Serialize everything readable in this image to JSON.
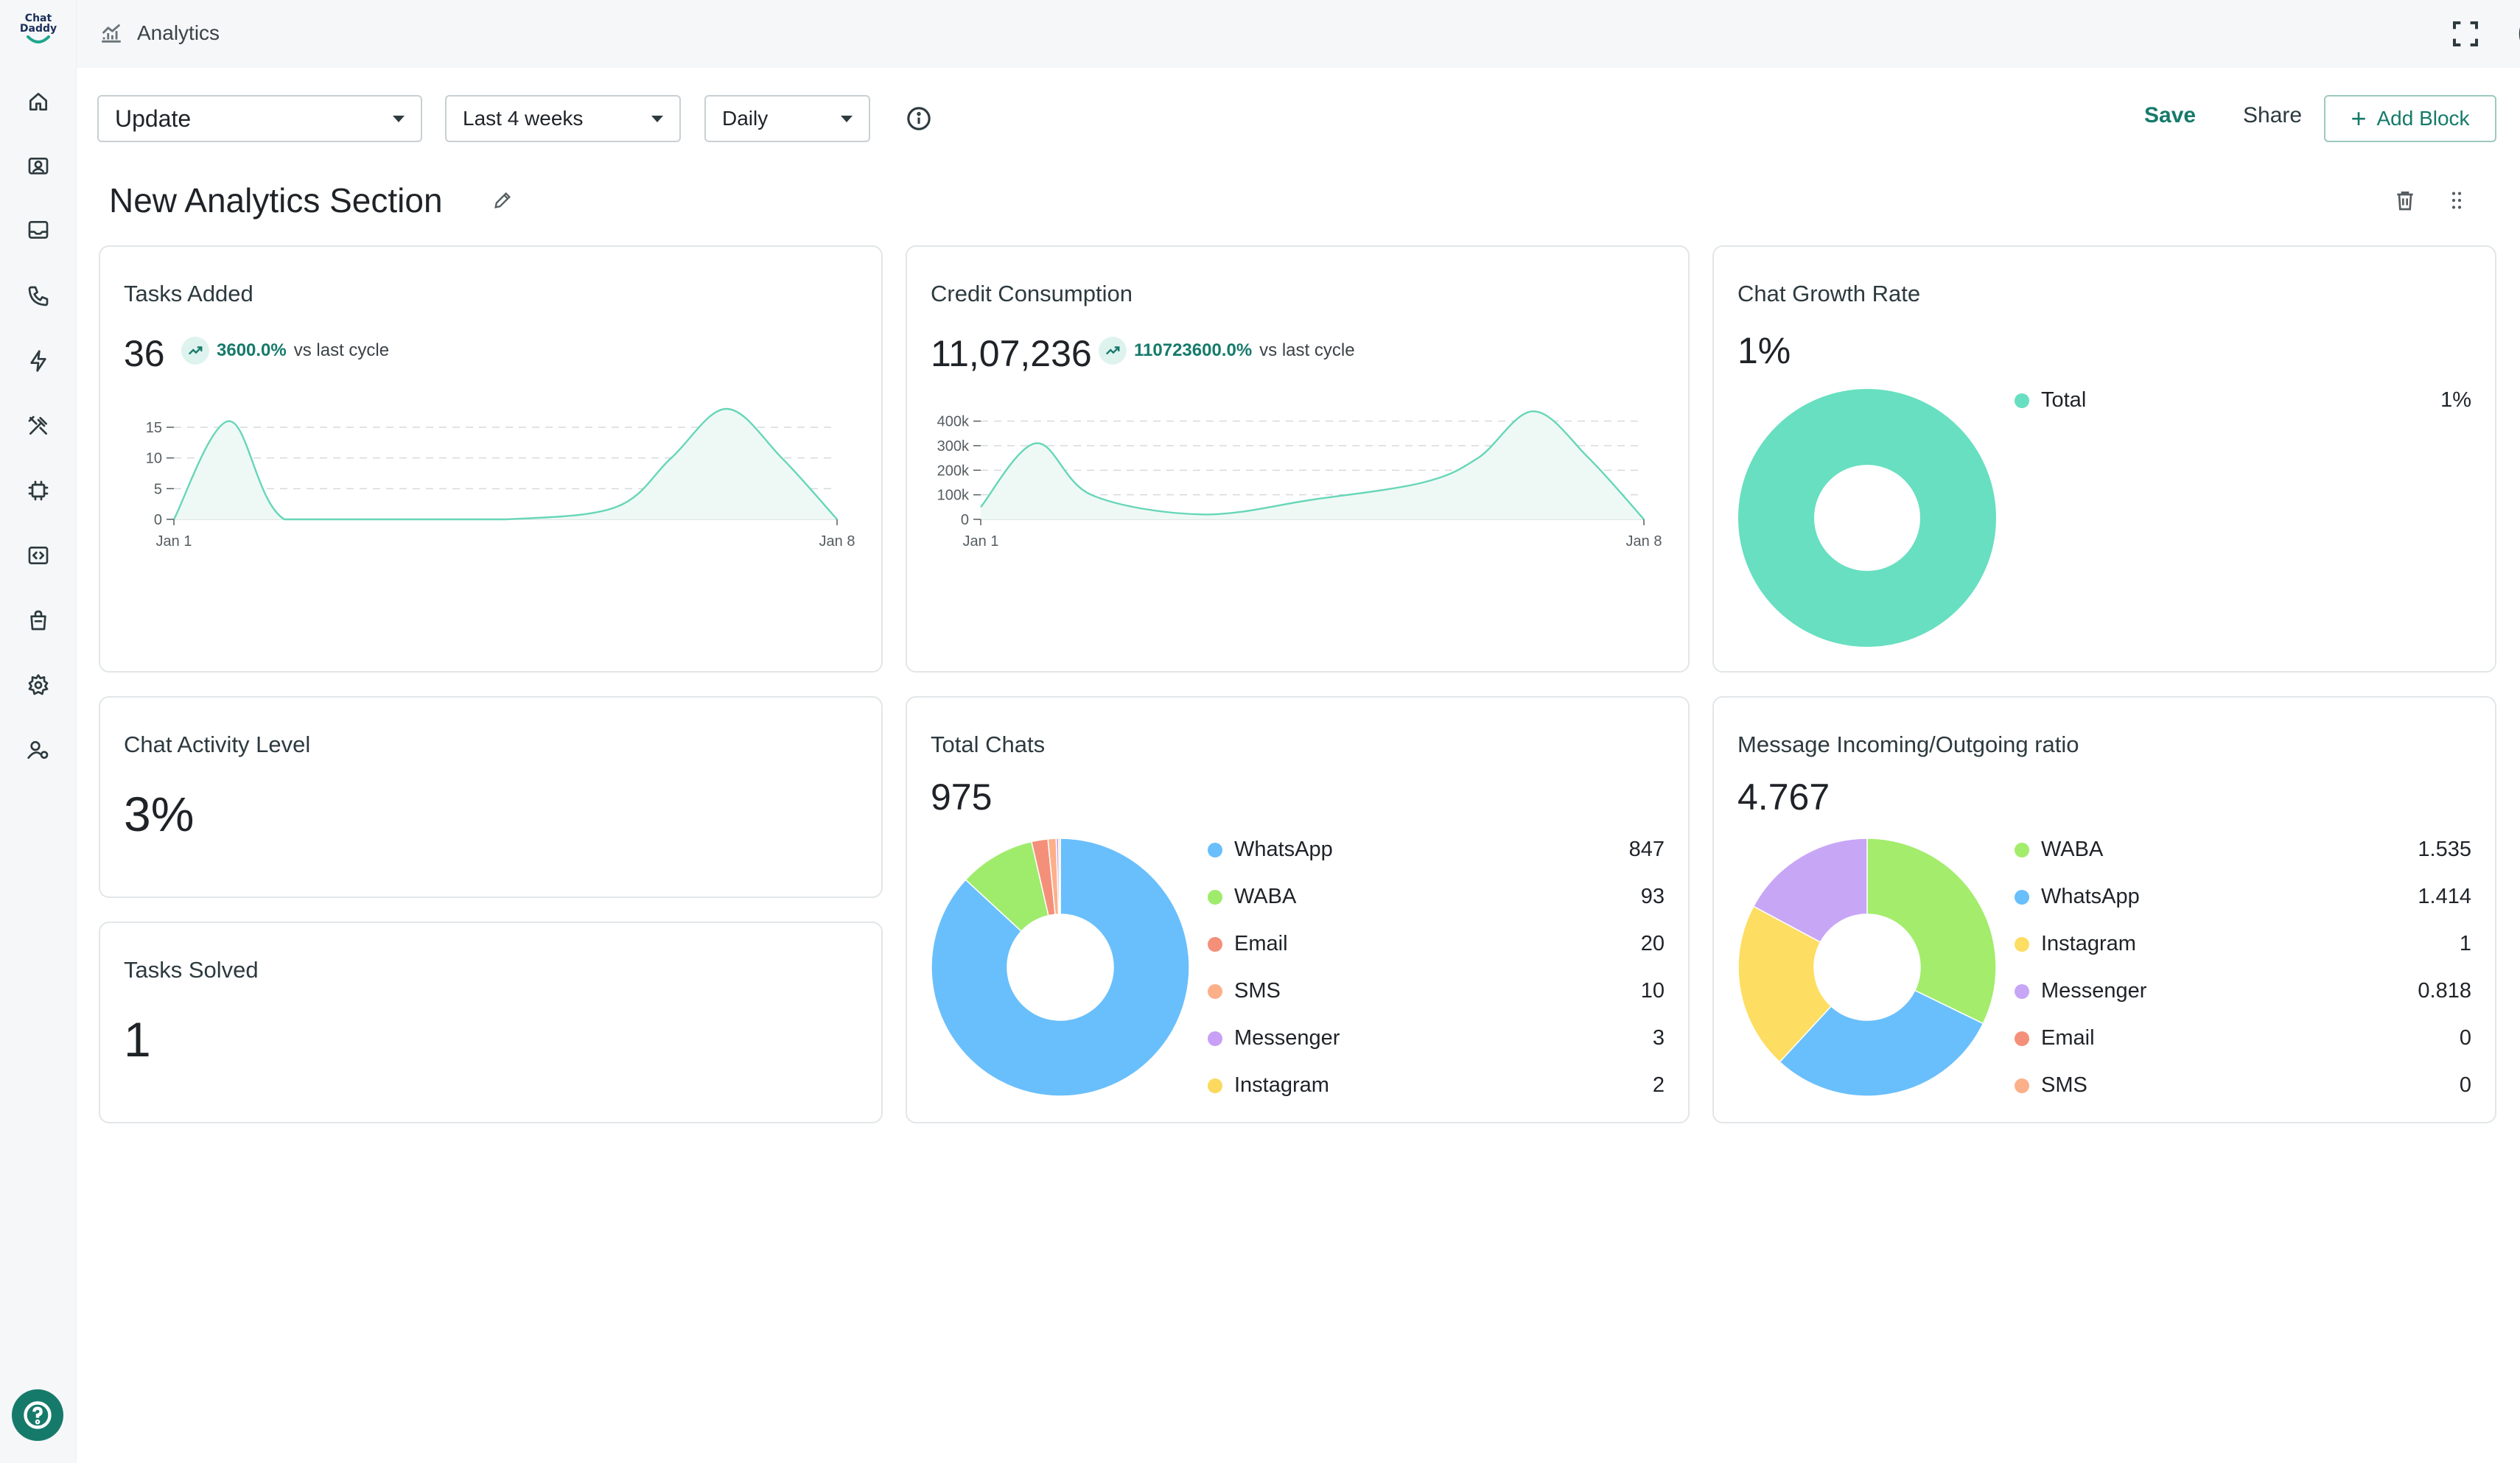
{
  "app": {
    "logo_text_1": "Chat",
    "logo_text_2": "Daddy"
  },
  "topbar": {
    "page_title": "Analytics"
  },
  "toolbar": {
    "update_select": "Update",
    "period_select": "Last 4 weeks",
    "interval_select": "Daily",
    "save_label": "Save",
    "share_label": "Share",
    "add_block_label": "Add Block"
  },
  "section": {
    "title": "New Analytics Section"
  },
  "cards": {
    "tasks_added": {
      "title": "Tasks Added",
      "value": "36",
      "change": "3600.0%",
      "vs": "vs last cycle",
      "chart_data": {
        "type": "area",
        "x_labels": [
          "Jan 1",
          "Jan 8"
        ],
        "y_ticks": [
          "0",
          "5",
          "10",
          "15"
        ],
        "ylim": [
          0,
          18
        ],
        "x": [
          0,
          0.5,
          1,
          2,
          3,
          4,
          4.5,
          5,
          5.5,
          6
        ],
        "values": [
          0,
          16,
          0,
          0,
          0,
          2,
          10,
          18,
          10,
          0
        ],
        "color": "#67d6b8"
      }
    },
    "credit_consumption": {
      "title": "Credit Consumption",
      "value": "11,07,236",
      "change": "110723600.0%",
      "vs": "vs last cycle",
      "chart_data": {
        "type": "area",
        "x_labels": [
          "Jan 1",
          "Jan 8"
        ],
        "y_ticks": [
          "0",
          "100k",
          "200k",
          "300k",
          "400k"
        ],
        "ylim": [
          0,
          450000
        ],
        "x": [
          0,
          0.5,
          1,
          2,
          3,
          4,
          4.5,
          5,
          5.5,
          6
        ],
        "values": [
          50000,
          310000,
          100000,
          20000,
          80000,
          150000,
          250000,
          440000,
          250000,
          0
        ],
        "color": "#67d6b8"
      }
    },
    "chat_growth_rate": {
      "title": "Chat Growth Rate",
      "value": "1%",
      "legend": [
        {
          "label": "Total",
          "value": "1%",
          "color": "#67dfc0"
        }
      ],
      "chart_data": {
        "type": "pie",
        "labels": [
          "Total"
        ],
        "values": [
          1
        ],
        "colors": [
          "#67dfc0"
        ]
      }
    },
    "chat_activity_level": {
      "title": "Chat Activity Level",
      "value": "3%"
    },
    "tasks_solved": {
      "title": "Tasks Solved",
      "value": "1"
    },
    "total_chats": {
      "title": "Total Chats",
      "value": "975",
      "legend": [
        {
          "label": "WhatsApp",
          "value": "847",
          "color": "#69bffb"
        },
        {
          "label": "WABA",
          "value": "93",
          "color": "#9fec6c"
        },
        {
          "label": "Email",
          "value": "20",
          "color": "#f4907a"
        },
        {
          "label": "SMS",
          "value": "10",
          "color": "#fbb08a"
        },
        {
          "label": "Messenger",
          "value": "3",
          "color": "#c8a0f6"
        },
        {
          "label": "Instagram",
          "value": "2",
          "color": "#fbd95e"
        }
      ],
      "chart_data": {
        "type": "pie",
        "labels": [
          "WhatsApp",
          "WABA",
          "Email",
          "SMS",
          "Messenger",
          "Instagram"
        ],
        "values": [
          847,
          93,
          20,
          10,
          3,
          2
        ],
        "colors": [
          "#69bffb",
          "#9fec6c",
          "#f4907a",
          "#fbb08a",
          "#c8a0f6",
          "#fbd95e"
        ]
      }
    },
    "message_ratio": {
      "title": "Message Incoming/Outgoing ratio",
      "value": "4.767",
      "legend": [
        {
          "label": "WABA",
          "value": "1.535",
          "color": "#a3ec6c"
        },
        {
          "label": "WhatsApp",
          "value": "1.414",
          "color": "#69bffb"
        },
        {
          "label": "Instagram",
          "value": "1",
          "color": "#fddd62"
        },
        {
          "label": "Messenger",
          "value": "0.818",
          "color": "#c8a6f6"
        },
        {
          "label": "Email",
          "value": "0",
          "color": "#f4907a"
        },
        {
          "label": "SMS",
          "value": "0",
          "color": "#fbb08a"
        }
      ],
      "chart_data": {
        "type": "pie",
        "labels": [
          "WABA",
          "WhatsApp",
          "Instagram",
          "Messenger",
          "Email",
          "SMS"
        ],
        "values": [
          1.535,
          1.414,
          1,
          0.818,
          0,
          0
        ],
        "colors": [
          "#a3ec6c",
          "#69bffb",
          "#fddd62",
          "#c8a6f6",
          "#f4907a",
          "#fbb08a"
        ]
      }
    }
  }
}
